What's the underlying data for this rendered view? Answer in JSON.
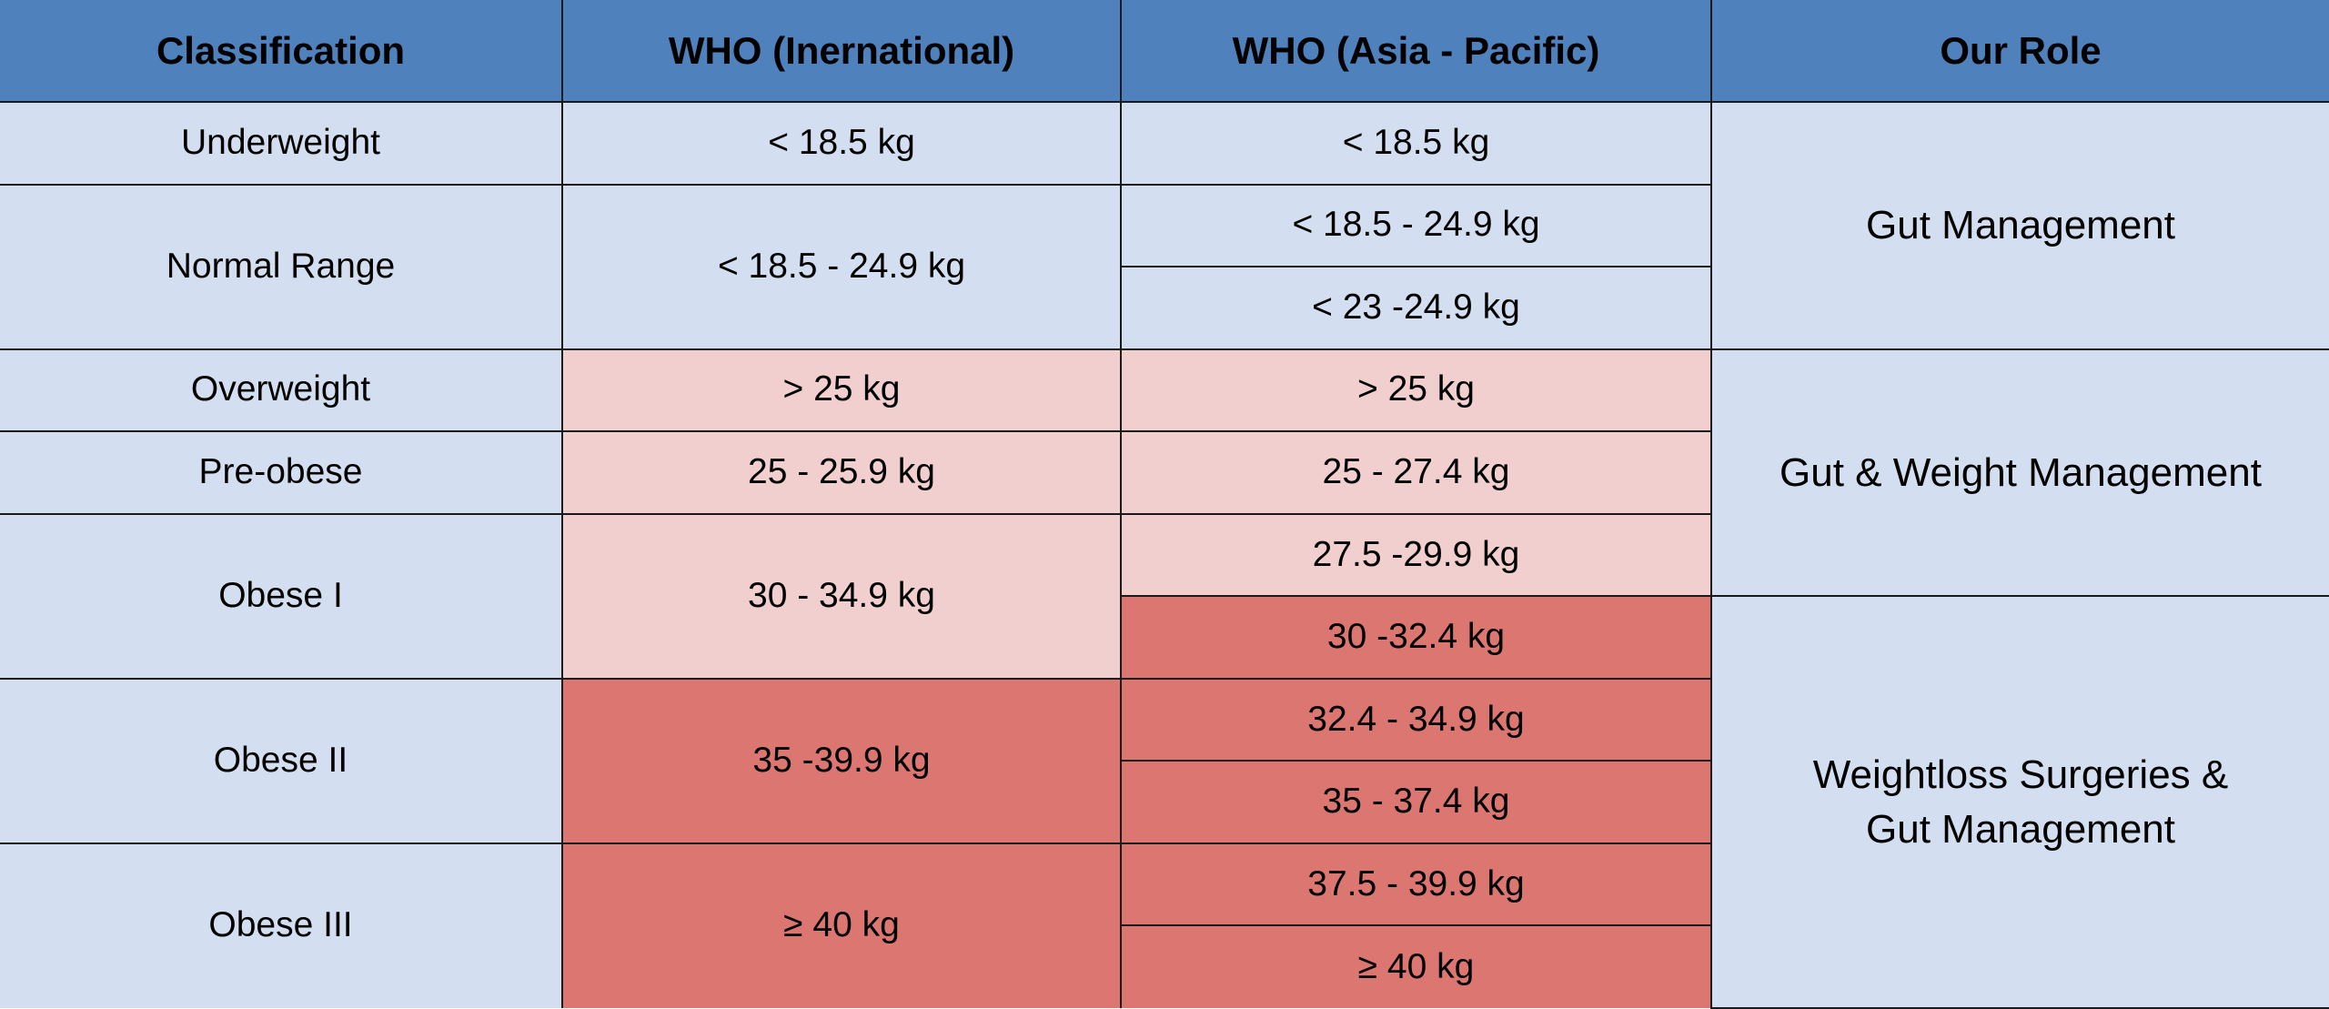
{
  "headers": {
    "classification": "Classification",
    "who_international": "WHO (Inernational)",
    "who_asia_pacific": "WHO (Asia - Pacific)",
    "our_role": "Our Role"
  },
  "rows": {
    "underweight": {
      "label": "Underweight",
      "international": "< 18.5 kg",
      "asia": [
        "< 18.5 kg"
      ]
    },
    "normal": {
      "label": "Normal Range",
      "international": "< 18.5 - 24.9 kg",
      "asia": [
        "< 18.5 - 24.9 kg",
        "< 23 -24.9 kg"
      ]
    },
    "overweight": {
      "label": "Overweight",
      "international": "> 25 kg",
      "asia": [
        "> 25 kg"
      ]
    },
    "preobese": {
      "label": "Pre-obese",
      "international": "25 - 25.9 kg",
      "asia": [
        "25 - 27.4 kg"
      ]
    },
    "obese1": {
      "label": "Obese I",
      "international": "30 - 34.9 kg",
      "asia": [
        "27.5 -29.9 kg",
        "30 -32.4 kg"
      ]
    },
    "obese2": {
      "label": "Obese II",
      "international": "35 -39.9 kg",
      "asia": [
        "32.4 - 34.9 kg",
        "35 - 37.4 kg"
      ]
    },
    "obese3": {
      "label": "Obese III",
      "international": "≥ 40 kg",
      "asia": [
        "37.5 -  39.9 kg",
        "≥ 40 kg"
      ]
    }
  },
  "roles": {
    "gut": "Gut Management",
    "gut_weight": "Gut & Weight Management",
    "surgery_line1": "Weightloss Surgeries &",
    "surgery_line2": "Gut Management"
  },
  "colors": {
    "header": "#4f81bd",
    "normal": "#d3dff0",
    "elevated": "#f2cfcf",
    "high": "#db7671"
  }
}
